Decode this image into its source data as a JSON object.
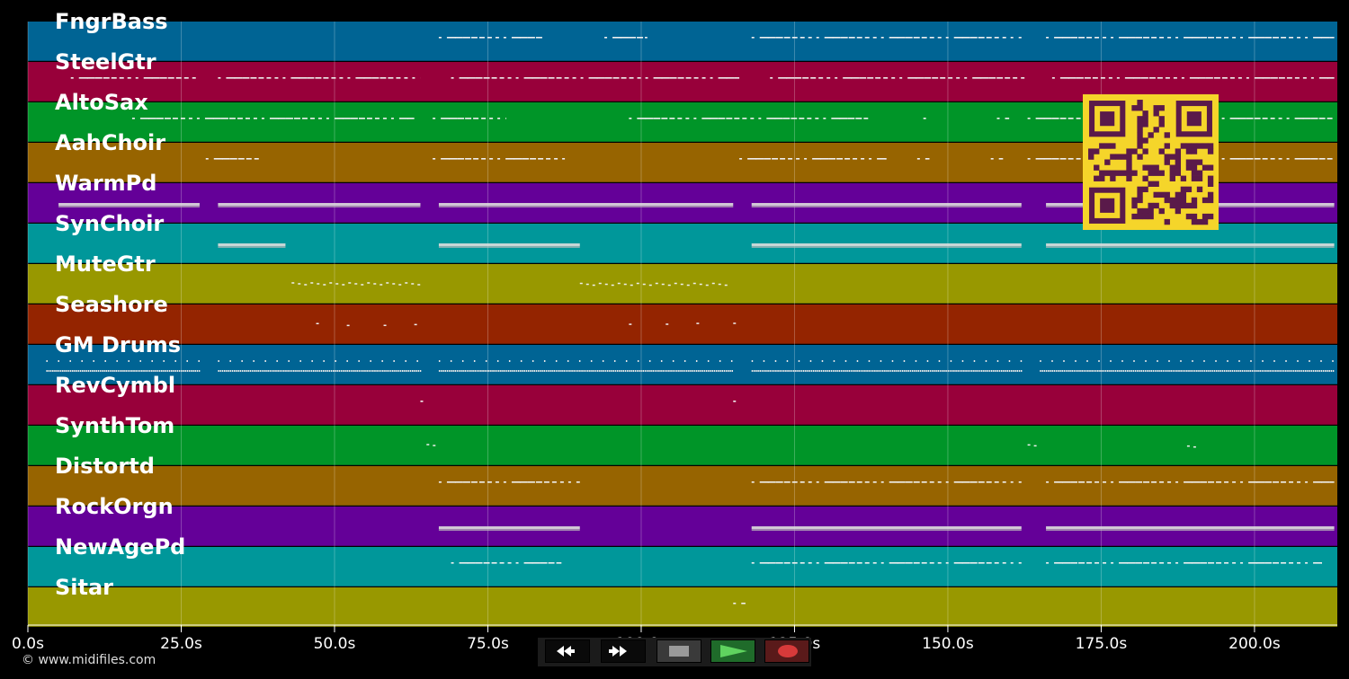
{
  "timeline": {
    "duration": 213.5,
    "ticks": [
      {
        "t": 0,
        "label": "0.0s"
      },
      {
        "t": 25,
        "label": "25.0s"
      },
      {
        "t": 50,
        "label": "50.0s"
      },
      {
        "t": 75,
        "label": "75.0s"
      },
      {
        "t": 100,
        "label": "100.0s"
      },
      {
        "t": 125,
        "label": "125.0s"
      },
      {
        "t": 150,
        "label": "150.0s"
      },
      {
        "t": 175,
        "label": "175.0s"
      },
      {
        "t": 200,
        "label": "200.0s"
      }
    ]
  },
  "tracks": [
    {
      "name": "FngrBass",
      "color": "#006494",
      "segments": [
        [
          67,
          84
        ],
        [
          94,
          101
        ],
        [
          118,
          162
        ],
        [
          166,
          213
        ]
      ],
      "style": "dash"
    },
    {
      "name": "SteelGtr",
      "color": "#98003a",
      "segments": [
        [
          7,
          28
        ],
        [
          31,
          64
        ],
        [
          69,
          116
        ],
        [
          121,
          163
        ],
        [
          167,
          213
        ]
      ],
      "style": "dash"
    },
    {
      "name": "AltoSax",
      "color": "#009528",
      "segments": [
        [
          17,
          63
        ],
        [
          66,
          78
        ],
        [
          98,
          137
        ],
        [
          146,
          147
        ],
        [
          158,
          160
        ],
        [
          163,
          213
        ]
      ],
      "style": "dash"
    },
    {
      "name": "AahChoir",
      "color": "#976400",
      "segments": [
        [
          29,
          38
        ],
        [
          66,
          88
        ],
        [
          116,
          140
        ],
        [
          145,
          147
        ],
        [
          157,
          159
        ],
        [
          163,
          213
        ]
      ],
      "style": "dash"
    },
    {
      "name": "WarmPd",
      "color": "#640098",
      "segments": [
        [
          5,
          28
        ],
        [
          31,
          64
        ],
        [
          67,
          115
        ],
        [
          118,
          162
        ],
        [
          166,
          213
        ]
      ],
      "style": "bar"
    },
    {
      "name": "SynChoir",
      "color": "#00979a",
      "segments": [
        [
          31,
          42
        ],
        [
          67,
          90
        ],
        [
          118,
          162
        ],
        [
          166,
          213
        ]
      ],
      "style": "bar"
    },
    {
      "name": "MuteGtr",
      "color": "#989800",
      "segments": [
        [
          43,
          64
        ],
        [
          90,
          114
        ]
      ],
      "style": "dot"
    },
    {
      "name": "Seashore",
      "color": "#942400",
      "segments": [
        [
          47,
          48
        ],
        [
          52,
          53
        ],
        [
          58,
          59
        ],
        [
          63,
          64
        ],
        [
          98,
          99
        ],
        [
          104,
          105
        ],
        [
          109,
          110
        ],
        [
          115,
          116
        ]
      ],
      "style": "dot"
    },
    {
      "name": "GM Drums",
      "color": "#006494",
      "segments": [
        [
          3,
          28
        ],
        [
          31,
          64
        ],
        [
          67,
          115
        ],
        [
          118,
          162
        ],
        [
          165,
          213
        ]
      ],
      "style": "drums"
    },
    {
      "name": "RevCymbl",
      "color": "#98003a",
      "segments": [
        [
          64,
          65
        ],
        [
          115,
          116
        ]
      ],
      "style": "dash"
    },
    {
      "name": "SynthTom",
      "color": "#009528",
      "segments": [
        [
          65,
          67
        ],
        [
          163,
          165
        ],
        [
          189,
          191
        ]
      ],
      "style": "dot"
    },
    {
      "name": "Distortd",
      "color": "#976400",
      "segments": [
        [
          67,
          90
        ],
        [
          118,
          162
        ],
        [
          166,
          213
        ]
      ],
      "style": "dash"
    },
    {
      "name": "RockOrgn",
      "color": "#640098",
      "segments": [
        [
          67,
          90
        ],
        [
          118,
          162
        ],
        [
          166,
          213
        ]
      ],
      "style": "bar"
    },
    {
      "name": "NewAgePd",
      "color": "#00979a",
      "segments": [
        [
          69,
          87
        ],
        [
          118,
          162
        ],
        [
          166,
          211
        ]
      ],
      "style": "dash"
    },
    {
      "name": "Sitar",
      "color": "#989800",
      "segments": [
        [
          115,
          117
        ]
      ],
      "style": "dash"
    }
  ],
  "transport": {
    "buttons": [
      {
        "name": "rewind-button",
        "icon": "rewind-icon"
      },
      {
        "name": "fast-forward-button",
        "icon": "fast-forward-icon"
      },
      {
        "name": "stop-button",
        "icon": "stop-icon"
      },
      {
        "name": "play-button",
        "icon": "play-icon"
      },
      {
        "name": "record-button",
        "icon": "record-icon"
      }
    ]
  },
  "qr": {
    "icon": "qr-code-icon",
    "bg": "#f5d52a",
    "fg": "#5a1a4a"
  },
  "copyright": "© www.midifiles.com"
}
